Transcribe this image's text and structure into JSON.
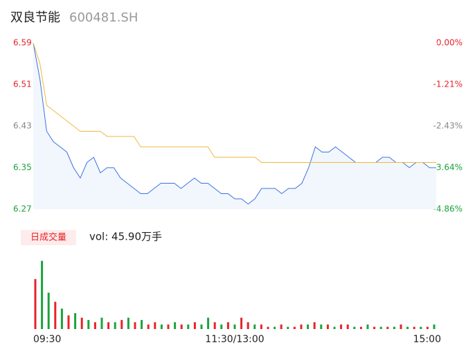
{
  "header": {
    "name": "双良节能",
    "code": "600481.SH"
  },
  "chart_data": [
    {
      "type": "line",
      "x": [
        0,
        4,
        8,
        12,
        16,
        20,
        24,
        28,
        32,
        36,
        40,
        44,
        48,
        52,
        56,
        60,
        64,
        68,
        72,
        76,
        80,
        84,
        88,
        92,
        96,
        100,
        104,
        108,
        112,
        116,
        120,
        124,
        128,
        132,
        136,
        140,
        144,
        148,
        152,
        156,
        160,
        164,
        168,
        172,
        176,
        180,
        184,
        188,
        192,
        196,
        200,
        204,
        208,
        212,
        216,
        220,
        224,
        228,
        232,
        236,
        240
      ],
      "xlim": [
        0,
        240
      ],
      "xticks": [
        {
          "value": 0,
          "label": "09:30"
        },
        {
          "value": 120,
          "label": "11:30/13:00"
        },
        {
          "value": 240,
          "label": "15:00"
        }
      ],
      "series": [
        {
          "name": "price",
          "color": "#3b73e0",
          "values": [
            6.59,
            6.52,
            6.42,
            6.4,
            6.39,
            6.38,
            6.35,
            6.33,
            6.36,
            6.37,
            6.34,
            6.35,
            6.35,
            6.33,
            6.32,
            6.31,
            6.3,
            6.3,
            6.31,
            6.32,
            6.32,
            6.32,
            6.31,
            6.32,
            6.33,
            6.32,
            6.32,
            6.31,
            6.3,
            6.3,
            6.29,
            6.29,
            6.28,
            6.29,
            6.31,
            6.31,
            6.31,
            6.3,
            6.31,
            6.31,
            6.32,
            6.35,
            6.39,
            6.38,
            6.38,
            6.39,
            6.38,
            6.37,
            6.36,
            6.36,
            6.36,
            6.36,
            6.37,
            6.37,
            6.36,
            6.36,
            6.35,
            6.36,
            6.36,
            6.35,
            6.35
          ]
        },
        {
          "name": "average",
          "color": "#f0b73a",
          "values": [
            6.59,
            6.55,
            6.47,
            6.46,
            6.45,
            6.44,
            6.43,
            6.42,
            6.42,
            6.42,
            6.42,
            6.41,
            6.41,
            6.41,
            6.41,
            6.41,
            6.39,
            6.39,
            6.39,
            6.39,
            6.39,
            6.39,
            6.39,
            6.39,
            6.39,
            6.39,
            6.39,
            6.37,
            6.37,
            6.37,
            6.37,
            6.37,
            6.37,
            6.37,
            6.36,
            6.36,
            6.36,
            6.36,
            6.36,
            6.36,
            6.36,
            6.36,
            6.36,
            6.36,
            6.36,
            6.36,
            6.36,
            6.36,
            6.36,
            6.36,
            6.36,
            6.36,
            6.36,
            6.36,
            6.36,
            6.36,
            6.36,
            6.36,
            6.36,
            6.36,
            6.36
          ]
        }
      ],
      "ylim": [
        6.27,
        6.59
      ],
      "yticks": [
        6.59,
        6.51,
        6.43,
        6.35,
        6.27
      ],
      "ytick_colors": [
        "#e8232a",
        "#e8232a",
        "#888888",
        "#1aa33c",
        "#1aa33c"
      ],
      "y2lim": [
        -4.86,
        0
      ],
      "y2ticks": [
        {
          "value": 0,
          "label": "0.00%"
        },
        {
          "value": -1.21,
          "label": "-1.21%"
        },
        {
          "value": -2.43,
          "label": "-2.43%"
        },
        {
          "value": -3.64,
          "label": "-3.64%"
        },
        {
          "value": -4.86,
          "label": "-4.86%"
        }
      ],
      "y2tick_colors": [
        "#e8232a",
        "#e8232a",
        "#888888",
        "#1aa33c",
        "#1aa33c"
      ]
    },
    {
      "type": "bar",
      "label": "日成交量",
      "summary": "vol: 45.90万手",
      "x": [
        0,
        4,
        8,
        12,
        16,
        20,
        24,
        28,
        32,
        36,
        40,
        44,
        48,
        52,
        56,
        60,
        64,
        68,
        72,
        76,
        80,
        84,
        88,
        92,
        96,
        100,
        104,
        108,
        112,
        116,
        120,
        124,
        128,
        132,
        136,
        140,
        144,
        148,
        152,
        156,
        160,
        164,
        168,
        172,
        176,
        180,
        184,
        188,
        192,
        196,
        200,
        204,
        208,
        212,
        216,
        220,
        224,
        228,
        232,
        236,
        240
      ],
      "xlim": [
        0,
        240
      ],
      "values": [
        2.2,
        3.0,
        1.6,
        1.2,
        0.9,
        0.6,
        0.7,
        0.5,
        0.4,
        0.3,
        0.5,
        0.3,
        0.3,
        0.4,
        0.5,
        0.3,
        0.4,
        0.2,
        0.3,
        0.2,
        0.2,
        0.3,
        0.2,
        0.2,
        0.3,
        0.2,
        0.5,
        0.3,
        0.2,
        0.3,
        0.2,
        0.5,
        0.3,
        0.2,
        0.2,
        0.1,
        0.1,
        0.2,
        0.1,
        0.1,
        0.2,
        0.2,
        0.3,
        0.2,
        0.2,
        0.1,
        0.2,
        0.2,
        0.1,
        0.1,
        0.2,
        0.1,
        0.1,
        0.1,
        0.1,
        0.2,
        0.1,
        0.1,
        0.1,
        0.1,
        0.2
      ],
      "colors": [
        "#e8232a",
        "#1aa33c",
        "#1aa33c",
        "#e8232a",
        "#1aa33c",
        "#e8232a",
        "#1aa33c",
        "#e8232a",
        "#1aa33c",
        "#e8232a",
        "#1aa33c",
        "#e8232a",
        "#1aa33c",
        "#e8232a",
        "#1aa33c",
        "#e8232a",
        "#1aa33c",
        "#e8232a",
        "#e8232a",
        "#1aa33c",
        "#e8232a",
        "#1aa33c",
        "#e8232a",
        "#1aa33c",
        "#e8232a",
        "#1aa33c",
        "#1aa33c",
        "#e8232a",
        "#1aa33c",
        "#e8232a",
        "#1aa33c",
        "#e8232a",
        "#e8232a",
        "#1aa33c",
        "#e8232a",
        "#e8232a",
        "#1aa33c",
        "#e8232a",
        "#1aa33c",
        "#e8232a",
        "#e8232a",
        "#1aa33c",
        "#e8232a",
        "#1aa33c",
        "#e8232a",
        "#1aa33c",
        "#e8232a",
        "#e8232a",
        "#1aa33c",
        "#e8232a",
        "#1aa33c",
        "#e8232a",
        "#1aa33c",
        "#e8232a",
        "#1aa33c",
        "#e8232a",
        "#1aa33c",
        "#e8232a",
        "#1aa33c",
        "#e8232a",
        "#1aa33c"
      ],
      "ylim": [
        0,
        3.2
      ]
    }
  ]
}
